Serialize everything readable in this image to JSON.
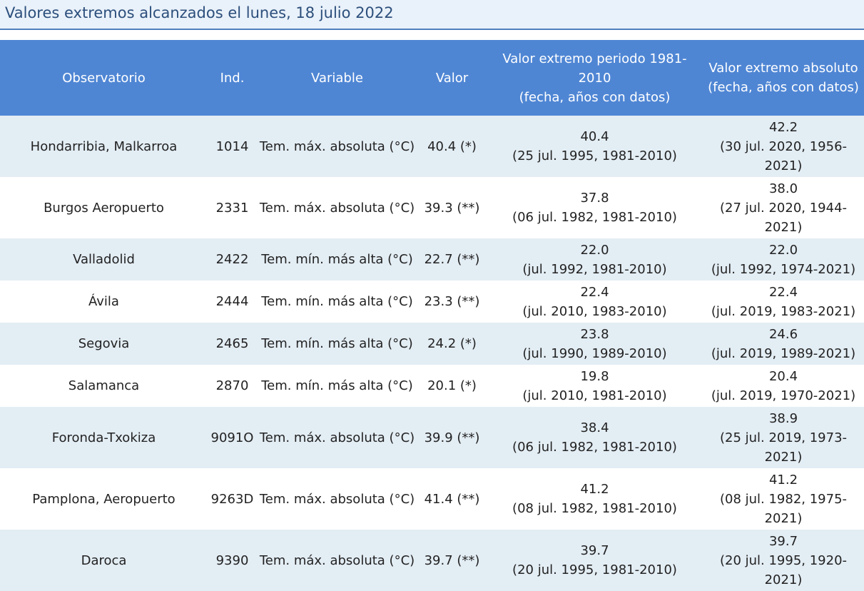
{
  "title": "Valores extremos alcanzados el lunes, 18 julio 2022",
  "columns": [
    "Observatorio",
    "Ind.",
    "Variable",
    "Valor",
    "Valor extremo periodo 1981-2010\n(fecha, años con datos)",
    "Valor extremo absoluto\n(fecha, años con datos)"
  ],
  "rows": [
    {
      "obs": "Hondarribia, Malkarroa",
      "ind": "1014",
      "var": "Tem. máx. absoluta (°C)",
      "val": "40.4 (*)",
      "ext1": "40.4\n(25 jul. 1995, 1981-2010)",
      "ext2": "42.2\n(30 jul. 2020, 1956-2021)"
    },
    {
      "obs": "Burgos Aeropuerto",
      "ind": "2331",
      "var": "Tem. máx. absoluta (°C)",
      "val": "39.3 (**)",
      "ext1": "37.8\n(06 jul. 1982, 1981-2010)",
      "ext2": "38.0\n(27 jul. 2020, 1944-2021)"
    },
    {
      "obs": "Valladolid",
      "ind": "2422",
      "var": "Tem. mín. más alta (°C)",
      "val": "22.7 (**)",
      "ext1": "22.0\n(jul. 1992, 1981-2010)",
      "ext2": "22.0\n(jul. 1992, 1974-2021)"
    },
    {
      "obs": "Ávila",
      "ind": "2444",
      "var": "Tem. mín. más alta (°C)",
      "val": "23.3 (**)",
      "ext1": "22.4\n(jul. 2010, 1983-2010)",
      "ext2": "22.4\n(jul. 2019, 1983-2021)"
    },
    {
      "obs": "Segovia",
      "ind": "2465",
      "var": "Tem. mín. más alta (°C)",
      "val": "24.2 (*)",
      "ext1": "23.8\n(jul. 1990, 1989-2010)",
      "ext2": "24.6\n(jul. 2019, 1989-2021)"
    },
    {
      "obs": "Salamanca",
      "ind": "2870",
      "var": "Tem. mín. más alta (°C)",
      "val": "20.1 (*)",
      "ext1": "19.8\n(jul. 2010, 1981-2010)",
      "ext2": "20.4\n(jul. 2019, 1970-2021)"
    },
    {
      "obs": "Foronda-Txokiza",
      "ind": "9091O",
      "var": "Tem. máx. absoluta (°C)",
      "val": "39.9 (**)",
      "ext1": "38.4\n(06 jul. 1982, 1981-2010)",
      "ext2": "38.9\n(25 jul. 2019, 1973-2021)"
    },
    {
      "obs": "Pamplona, Aeropuerto",
      "ind": "9263D",
      "var": "Tem. máx. absoluta (°C)",
      "val": "41.4 (**)",
      "ext1": "41.2\n(08 jul. 1982, 1981-2010)",
      "ext2": "41.2\n(08 jul. 1982, 1975-2021)"
    },
    {
      "obs": "Daroca",
      "ind": "9390",
      "var": "Tem. máx. absoluta (°C)",
      "val": "39.7 (**)",
      "ext1": "39.7\n(20 jul. 1995, 1981-2010)",
      "ext2": "39.7\n(20 jul. 1995, 1920-2021)"
    }
  ]
}
